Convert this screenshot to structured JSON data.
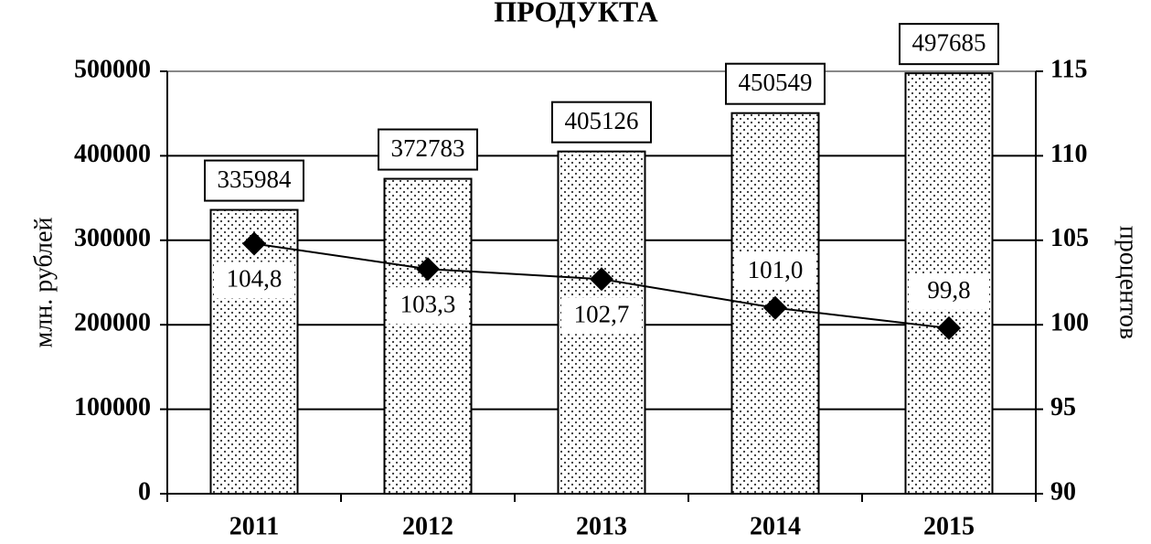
{
  "chart_data": {
    "type": "bar_line",
    "title": "ПРОДУКТА",
    "ylabel": "млн. рублей",
    "y2label": "процентов",
    "categories": [
      "2011",
      "2012",
      "2013",
      "2014",
      "2015"
    ],
    "series": [
      {
        "type": "bar",
        "axis": "y",
        "color": "#000000",
        "values": [
          335984,
          372783,
          405126,
          450549,
          497685
        ]
      },
      {
        "type": "line",
        "axis": "y2",
        "color": "#000000",
        "values": [
          104.8,
          103.3,
          102.7,
          101.0,
          99.8
        ],
        "value_labels": [
          "104,8",
          "103,3",
          "102,7",
          "101,0",
          "99,8"
        ]
      }
    ],
    "ylim": [
      0,
      500000
    ],
    "yticks": [
      0,
      100000,
      200000,
      300000,
      400000,
      500000
    ],
    "y2lim": [
      90,
      115
    ],
    "y2ticks": [
      90,
      95,
      100,
      105,
      110,
      115
    ],
    "grid": true
  }
}
